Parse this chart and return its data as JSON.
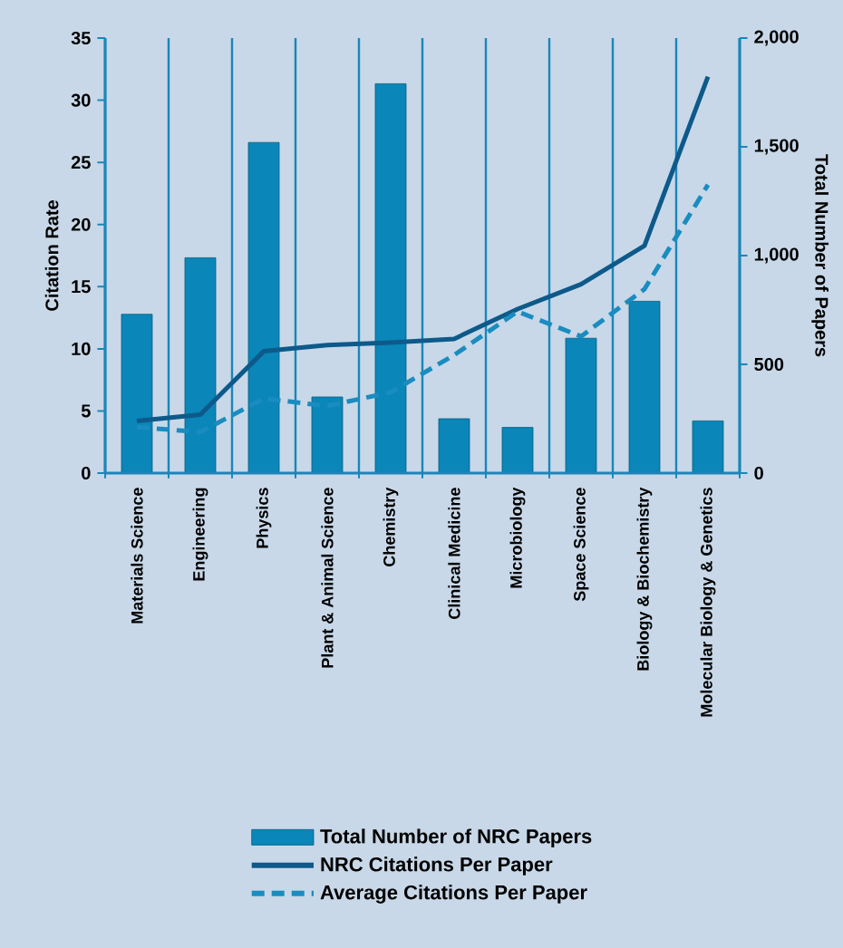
{
  "chart_data": {
    "type": "bar",
    "ylabel": "Citation Rate",
    "y2label": "Total Number of Papers",
    "categories": [
      "Materials Science",
      "Engineering",
      "Physics",
      "Plant & Animal Science",
      "Chemistry",
      "Clinical Medicine",
      "Microbiology",
      "Space Science",
      "Biology & Biochemistry",
      "Molecular Biology & Genetics"
    ],
    "series": [
      {
        "name": "Total Number of NRC Papers",
        "axis": "y2",
        "color": "#0a86b8",
        "values": [
          730,
          990,
          1520,
          350,
          1790,
          250,
          210,
          620,
          790,
          240
        ]
      },
      {
        "name": "NRC Citations Per Paper",
        "type": "line",
        "line_style": "solid",
        "color": "#0d5a8a",
        "values": [
          4.2,
          4.7,
          9.8,
          10.3,
          10.5,
          10.8,
          13.2,
          15.2,
          18.3,
          31.9
        ]
      },
      {
        "name": "Average Citations Per Paper",
        "type": "line",
        "line_style": "dashed",
        "color": "#1a8cc0",
        "values": [
          3.7,
          3.3,
          6.0,
          5.4,
          6.5,
          9.5,
          13.0,
          11.0,
          14.8,
          23.2
        ]
      }
    ],
    "ylim": [
      0,
      35
    ],
    "yticks": [
      0,
      5,
      10,
      15,
      20,
      25,
      30,
      35
    ],
    "y2lim": [
      0,
      2000
    ],
    "y2ticks": [
      0,
      500,
      {
        "value": 1000,
        "label": "1,000"
      },
      {
        "value": 1500,
        "label": "1,500"
      },
      {
        "value": 2000,
        "label": "2,000"
      }
    ],
    "grid": "x",
    "legend": "bottom",
    "marker": "none"
  }
}
